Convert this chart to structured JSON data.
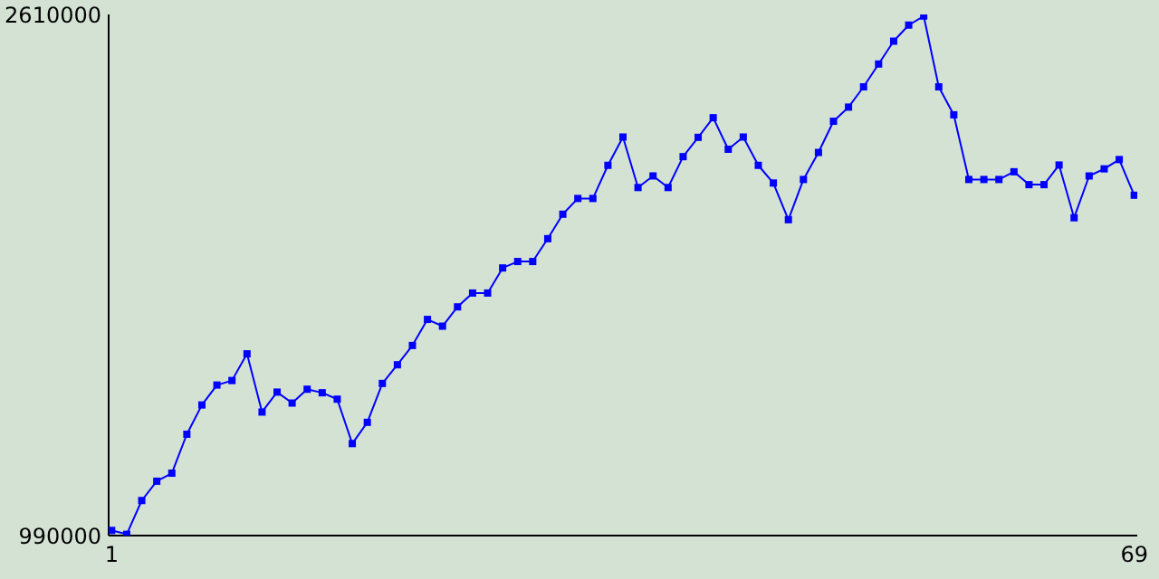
{
  "chart_data": {
    "type": "line",
    "x": [
      1,
      2,
      3,
      4,
      5,
      6,
      7,
      8,
      9,
      10,
      11,
      12,
      13,
      14,
      15,
      16,
      17,
      18,
      19,
      20,
      21,
      22,
      23,
      24,
      25,
      26,
      27,
      28,
      29,
      30,
      31,
      32,
      33,
      34,
      35,
      36,
      37,
      38,
      39,
      40,
      41,
      42,
      43,
      44,
      45,
      46,
      47,
      48,
      49,
      50,
      51,
      52,
      53,
      54,
      55,
      56,
      57,
      58,
      59,
      60,
      61,
      62,
      63,
      64,
      65,
      66,
      67,
      68,
      69
    ],
    "series": [
      {
        "color": "#0000ff",
        "values": [
          1006000,
          994000,
          1099000,
          1159000,
          1184000,
          1305000,
          1396000,
          1458000,
          1472000,
          1555000,
          1374000,
          1436000,
          1402000,
          1445000,
          1434000,
          1414000,
          1276000,
          1342000,
          1463000,
          1521000,
          1581000,
          1662000,
          1641000,
          1701000,
          1744000,
          1744000,
          1822000,
          1842000,
          1842000,
          1913000,
          1989000,
          2038000,
          2038000,
          2141000,
          2229000,
          2072000,
          2108000,
          2072000,
          2168000,
          2228000,
          2289000,
          2191000,
          2229000,
          2141000,
          2086000,
          1972000,
          2097000,
          2181000,
          2278000,
          2322000,
          2385000,
          2456000,
          2527000,
          2577000,
          2605000,
          2385000,
          2298000,
          2097000,
          2097000,
          2097000,
          2121000,
          2081000,
          2081000,
          2142000,
          1978000,
          2108000,
          2130000,
          2159000,
          2048000
        ]
      }
    ],
    "xlim": [
      0.8,
      69.2
    ],
    "ylim": [
      990000,
      2610000
    ],
    "xticks": [
      1,
      69
    ],
    "yticks": [
      990000,
      2610000
    ],
    "marker": "square",
    "grid": false
  }
}
